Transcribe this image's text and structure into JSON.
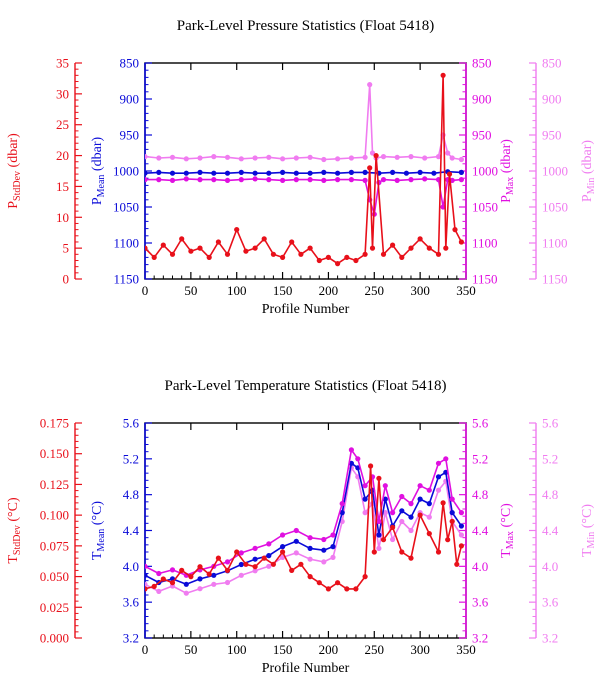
{
  "chart_data": [
    {
      "type": "line",
      "title": "Park-Level Pressure Statistics (Float 5418)",
      "xlabel": "Profile Number",
      "xlim": [
        0,
        350
      ],
      "xticks": [
        0,
        50,
        100,
        150,
        200,
        250,
        300,
        350
      ],
      "axes": [
        {
          "id": "std",
          "side": "left-outer",
          "label_main": "P",
          "label_sub": "StdDev",
          "label_unit": " (dbar)",
          "color": "#e8101a",
          "lim": [
            0,
            35
          ],
          "inverted": false,
          "ticks": [
            0,
            5,
            10,
            15,
            20,
            25,
            30,
            35
          ],
          "tick_labels": [
            "0",
            "5",
            "10",
            "15",
            "20",
            "25",
            "30",
            "35"
          ]
        },
        {
          "id": "mean",
          "side": "left-inner",
          "label_main": "P",
          "label_sub": "Mean",
          "label_unit": " (dbar)",
          "color": "#0a0ad8",
          "lim": [
            850,
            1150
          ],
          "inverted": true,
          "ticks": [
            850,
            900,
            950,
            1000,
            1050,
            1100,
            1150
          ],
          "tick_labels": [
            "850",
            "900",
            "950",
            "1000",
            "1050",
            "1100",
            "1150"
          ]
        },
        {
          "id": "max",
          "side": "right-inner",
          "label_main": "P",
          "label_sub": "Max",
          "label_unit": " (dbar)",
          "color": "#e010e0",
          "lim": [
            850,
            1150
          ],
          "inverted": true,
          "ticks": [
            850,
            900,
            950,
            1000,
            1050,
            1100,
            1150
          ],
          "tick_labels": [
            "850",
            "900",
            "950",
            "1000",
            "1050",
            "1100",
            "1150"
          ]
        },
        {
          "id": "min",
          "side": "right-outer",
          "label_main": "P",
          "label_sub": "Min",
          "label_unit": " (dbar)",
          "color": "#f07cf0",
          "lim": [
            850,
            1150
          ],
          "inverted": true,
          "ticks": [
            850,
            900,
            950,
            1000,
            1050,
            1100,
            1150
          ],
          "tick_labels": [
            "850",
            "900",
            "950",
            "1000",
            "1050",
            "1100",
            "1150"
          ]
        }
      ],
      "series": [
        {
          "axis": "min",
          "color": "#f07cf0",
          "x": [
            0,
            15,
            30,
            45,
            60,
            75,
            90,
            105,
            120,
            135,
            150,
            165,
            180,
            195,
            210,
            225,
            240,
            245,
            248,
            252,
            260,
            275,
            290,
            305,
            320,
            325,
            330,
            335,
            345
          ],
          "y": [
            980,
            982,
            981,
            983,
            982,
            980,
            981,
            983,
            982,
            981,
            983,
            982,
            981,
            984,
            983,
            982,
            981,
            880,
            975,
            982,
            980,
            981,
            980,
            982,
            980,
            950,
            975,
            982,
            984
          ]
        },
        {
          "axis": "max",
          "color": "#e010e0",
          "x": [
            0,
            15,
            30,
            45,
            60,
            75,
            90,
            105,
            120,
            135,
            150,
            165,
            180,
            195,
            210,
            225,
            240,
            245,
            250,
            255,
            260,
            275,
            290,
            305,
            320,
            325,
            330,
            335,
            345
          ],
          "y": [
            1012,
            1012,
            1013,
            1011,
            1012,
            1012,
            1013,
            1012,
            1011,
            1012,
            1013,
            1012,
            1012,
            1013,
            1012,
            1012,
            1013,
            1040,
            1060,
            1016,
            1012,
            1013,
            1012,
            1011,
            1012,
            1050,
            1012,
            1013,
            1012
          ]
        },
        {
          "axis": "mean",
          "color": "#0a0ad8",
          "x": [
            0,
            15,
            30,
            45,
            60,
            75,
            90,
            105,
            120,
            135,
            150,
            165,
            180,
            195,
            210,
            225,
            240,
            255,
            270,
            285,
            300,
            315,
            330,
            345
          ],
          "y": [
            1003,
            1002,
            1003,
            1003,
            1002,
            1003,
            1003,
            1002,
            1003,
            1003,
            1002,
            1003,
            1003,
            1002,
            1003,
            1002,
            1002,
            1003,
            1002,
            1003,
            1002,
            1003,
            1001,
            1002
          ]
        },
        {
          "axis": "std",
          "color": "#e8101a",
          "x": [
            0,
            10,
            20,
            30,
            40,
            50,
            60,
            70,
            80,
            90,
            100,
            110,
            120,
            130,
            140,
            150,
            160,
            170,
            180,
            190,
            200,
            210,
            220,
            230,
            240,
            245,
            248,
            252,
            260,
            270,
            280,
            290,
            300,
            310,
            320,
            325,
            328,
            332,
            338,
            345
          ],
          "y": [
            5,
            3.5,
            5.5,
            4,
            6.5,
            4.5,
            5,
            3.5,
            6,
            4,
            8,
            4.5,
            5,
            6.5,
            4,
            3.5,
            6,
            4,
            5,
            3,
            3.5,
            2.5,
            3.5,
            3,
            4,
            18,
            5,
            20,
            4,
            5.5,
            3.5,
            5,
            6.5,
            5,
            4,
            33,
            5,
            17,
            8,
            6
          ]
        }
      ]
    },
    {
      "type": "line",
      "title": "Park-Level Temperature Statistics (Float 5418)",
      "xlabel": "Profile Number",
      "xlim": [
        0,
        350
      ],
      "xticks": [
        0,
        50,
        100,
        150,
        200,
        250,
        300,
        350
      ],
      "axes": [
        {
          "id": "std",
          "side": "left-outer",
          "label_main": "T",
          "label_sub": "StdDev",
          "label_unit": " (°C)",
          "color": "#e8101a",
          "lim": [
            0,
            0.175
          ],
          "inverted": false,
          "ticks": [
            0,
            0.025,
            0.05,
            0.075,
            0.1,
            0.125,
            0.15,
            0.175
          ],
          "tick_labels": [
            "0.000",
            "0.025",
            "0.050",
            "0.075",
            "0.100",
            "0.125",
            "0.150",
            "0.175"
          ]
        },
        {
          "id": "mean",
          "side": "left-inner",
          "label_main": "T",
          "label_sub": "Mean",
          "label_unit": " (°C)",
          "color": "#0a0ad8",
          "lim": [
            3.2,
            5.6
          ],
          "inverted": false,
          "ticks": [
            3.2,
            3.6,
            4.0,
            4.4,
            4.8,
            5.2,
            5.6
          ],
          "tick_labels": [
            "3.2",
            "3.6",
            "4.0",
            "4.4",
            "4.8",
            "5.2",
            "5.6"
          ]
        },
        {
          "id": "max",
          "side": "right-inner",
          "label_main": "T",
          "label_sub": "Max",
          "label_unit": " (°C)",
          "color": "#e010e0",
          "lim": [
            3.2,
            5.6
          ],
          "inverted": false,
          "ticks": [
            3.2,
            3.6,
            4.0,
            4.4,
            4.8,
            5.2,
            5.6
          ],
          "tick_labels": [
            "3.2",
            "3.6",
            "4.0",
            "4.4",
            "4.8",
            "5.2",
            "5.6"
          ]
        },
        {
          "id": "min",
          "side": "right-outer",
          "label_main": "T",
          "label_sub": "Min",
          "label_unit": " (°C)",
          "color": "#f07cf0",
          "lim": [
            3.2,
            5.6
          ],
          "inverted": false,
          "ticks": [
            3.2,
            3.6,
            4.0,
            4.4,
            4.8,
            5.2,
            5.6
          ],
          "tick_labels": [
            "3.2",
            "3.6",
            "4.0",
            "4.4",
            "4.8",
            "5.2",
            "5.6"
          ]
        }
      ],
      "series": [
        {
          "axis": "min",
          "color": "#f07cf0",
          "x": [
            0,
            15,
            30,
            45,
            60,
            75,
            90,
            105,
            120,
            135,
            150,
            165,
            180,
            195,
            205,
            215,
            225,
            232,
            240,
            248,
            255,
            262,
            270,
            280,
            290,
            300,
            310,
            320,
            328,
            335,
            345
          ],
          "y": [
            3.8,
            3.72,
            3.78,
            3.7,
            3.75,
            3.8,
            3.82,
            3.9,
            3.95,
            4.0,
            4.1,
            4.15,
            4.08,
            4.05,
            4.1,
            4.5,
            5.1,
            5.0,
            4.6,
            4.7,
            4.2,
            4.6,
            4.3,
            4.5,
            4.4,
            4.6,
            4.55,
            4.85,
            4.95,
            4.5,
            4.35
          ]
        },
        {
          "axis": "mean",
          "color": "#0a0ad8",
          "x": [
            0,
            15,
            30,
            45,
            60,
            75,
            90,
            105,
            120,
            135,
            150,
            165,
            180,
            195,
            205,
            215,
            225,
            232,
            240,
            248,
            255,
            262,
            270,
            280,
            290,
            300,
            310,
            320,
            328,
            335,
            345
          ],
          "y": [
            3.9,
            3.82,
            3.86,
            3.8,
            3.86,
            3.9,
            3.95,
            4.02,
            4.08,
            4.12,
            4.22,
            4.28,
            4.2,
            4.18,
            4.22,
            4.6,
            5.15,
            5.1,
            4.75,
            4.85,
            4.35,
            4.75,
            4.45,
            4.62,
            4.55,
            4.75,
            4.7,
            5.0,
            5.05,
            4.6,
            4.45
          ]
        },
        {
          "axis": "max",
          "color": "#e010e0",
          "x": [
            0,
            15,
            30,
            45,
            60,
            75,
            90,
            105,
            120,
            135,
            150,
            165,
            180,
            195,
            205,
            215,
            225,
            232,
            240,
            248,
            255,
            262,
            270,
            280,
            290,
            300,
            310,
            320,
            328,
            335,
            345
          ],
          "y": [
            4.0,
            3.92,
            3.96,
            3.9,
            3.96,
            4.0,
            4.05,
            4.15,
            4.2,
            4.25,
            4.35,
            4.4,
            4.32,
            4.3,
            4.35,
            4.7,
            5.3,
            5.2,
            4.9,
            5.0,
            4.5,
            4.9,
            4.6,
            4.78,
            4.7,
            4.9,
            4.85,
            5.15,
            5.2,
            4.75,
            4.6
          ]
        },
        {
          "axis": "std",
          "color": "#e8101a",
          "x": [
            0,
            10,
            20,
            30,
            40,
            50,
            60,
            70,
            80,
            90,
            100,
            110,
            120,
            130,
            140,
            150,
            160,
            170,
            180,
            190,
            200,
            210,
            220,
            230,
            240,
            246,
            250,
            255,
            260,
            270,
            280,
            290,
            300,
            310,
            320,
            325,
            330,
            335,
            340,
            345
          ],
          "y": [
            0.04,
            0.042,
            0.048,
            0.045,
            0.055,
            0.05,
            0.058,
            0.052,
            0.065,
            0.055,
            0.07,
            0.06,
            0.058,
            0.065,
            0.06,
            0.07,
            0.055,
            0.06,
            0.05,
            0.045,
            0.04,
            0.045,
            0.04,
            0.04,
            0.05,
            0.14,
            0.07,
            0.13,
            0.08,
            0.09,
            0.07,
            0.065,
            0.1,
            0.085,
            0.07,
            0.11,
            0.08,
            0.095,
            0.06,
            0.075
          ]
        }
      ]
    }
  ]
}
